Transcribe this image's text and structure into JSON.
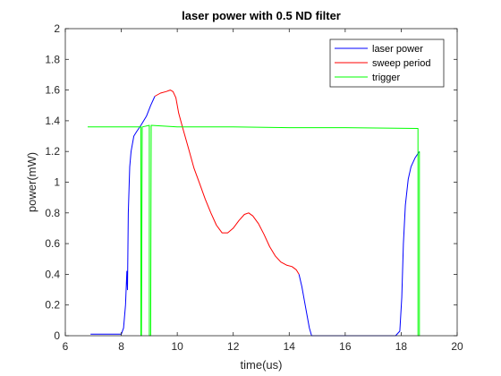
{
  "chart_data": {
    "type": "line",
    "title": "laser power with 0.5 ND filter",
    "xlabel": "time(us)",
    "ylabel": "power(mW)",
    "xlim": [
      6,
      20
    ],
    "ylim": [
      0,
      2
    ],
    "xticks": [
      "6",
      "8",
      "10",
      "12",
      "14",
      "16",
      "18",
      "20"
    ],
    "yticks": [
      "0",
      "0.2",
      "0.4",
      "0.6",
      "0.8",
      "1",
      "1.2",
      "1.4",
      "1.6",
      "1.8",
      "2"
    ],
    "grid": false,
    "legend_position": "top-right",
    "series": [
      {
        "name": "laser power",
        "color": "#0000ff",
        "segments": [
          [
            [
              6.9,
              0.01
            ],
            [
              7.5,
              0.01
            ],
            [
              8.0,
              0.01
            ],
            [
              8.08,
              0.05
            ],
            [
              8.15,
              0.2
            ],
            [
              8.2,
              0.42
            ],
            [
              8.22,
              0.3
            ],
            [
              8.25,
              0.8
            ],
            [
              8.3,
              1.1
            ],
            [
              8.35,
              1.2
            ],
            [
              8.45,
              1.3
            ],
            [
              8.55,
              1.33
            ],
            [
              8.7,
              1.37
            ],
            [
              8.9,
              1.43
            ],
            [
              9.05,
              1.5
            ],
            [
              9.2,
              1.56
            ]
          ],
          [
            [
              14.35,
              0.4
            ],
            [
              14.45,
              0.32
            ],
            [
              14.55,
              0.22
            ],
            [
              14.65,
              0.12
            ],
            [
              14.72,
              0.05
            ],
            [
              14.8,
              0.0
            ],
            [
              15.0,
              0.0
            ],
            [
              16.0,
              0.0
            ],
            [
              17.0,
              0.0
            ],
            [
              17.8,
              0.0
            ],
            [
              17.95,
              0.03
            ],
            [
              18.02,
              0.25
            ],
            [
              18.08,
              0.6
            ],
            [
              18.15,
              0.85
            ],
            [
              18.25,
              1.02
            ],
            [
              18.35,
              1.1
            ],
            [
              18.5,
              1.16
            ],
            [
              18.65,
              1.2
            ]
          ]
        ]
      },
      {
        "name": "sweep period",
        "color": "#ff0000",
        "segments": [
          [
            [
              9.2,
              1.56
            ],
            [
              9.4,
              1.58
            ],
            [
              9.6,
              1.59
            ],
            [
              9.75,
              1.6
            ],
            [
              9.85,
              1.59
            ],
            [
              9.95,
              1.55
            ],
            [
              10.05,
              1.45
            ],
            [
              10.2,
              1.35
            ],
            [
              10.4,
              1.22
            ],
            [
              10.6,
              1.09
            ],
            [
              10.8,
              0.99
            ],
            [
              11.0,
              0.89
            ],
            [
              11.2,
              0.8
            ],
            [
              11.4,
              0.72
            ],
            [
              11.6,
              0.67
            ],
            [
              11.8,
              0.67
            ],
            [
              12.0,
              0.7
            ],
            [
              12.2,
              0.75
            ],
            [
              12.4,
              0.79
            ],
            [
              12.55,
              0.8
            ],
            [
              12.7,
              0.78
            ],
            [
              12.9,
              0.73
            ],
            [
              13.1,
              0.66
            ],
            [
              13.3,
              0.58
            ],
            [
              13.5,
              0.52
            ],
            [
              13.7,
              0.48
            ],
            [
              13.9,
              0.46
            ],
            [
              14.1,
              0.45
            ],
            [
              14.25,
              0.43
            ],
            [
              14.35,
              0.4
            ]
          ]
        ]
      },
      {
        "name": "trigger",
        "color": "#00ff00",
        "segments": [
          [
            [
              6.8,
              1.36
            ],
            [
              8.45,
              1.36
            ],
            [
              8.5,
              1.36
            ],
            [
              8.7,
              1.36
            ],
            [
              8.7,
              0.0
            ],
            [
              8.72,
              0.0
            ],
            [
              8.75,
              1.36
            ],
            [
              9.0,
              1.37
            ],
            [
              9.0,
              0.0
            ],
            [
              9.05,
              0.0
            ],
            [
              9.07,
              1.37
            ],
            [
              10.0,
              1.36
            ],
            [
              12.0,
              1.36
            ],
            [
              14.0,
              1.355
            ],
            [
              16.0,
              1.355
            ],
            [
              18.6,
              1.35
            ],
            [
              18.6,
              0.0
            ],
            [
              18.65,
              0.0
            ],
            [
              18.65,
              1.2
            ]
          ]
        ]
      }
    ]
  }
}
